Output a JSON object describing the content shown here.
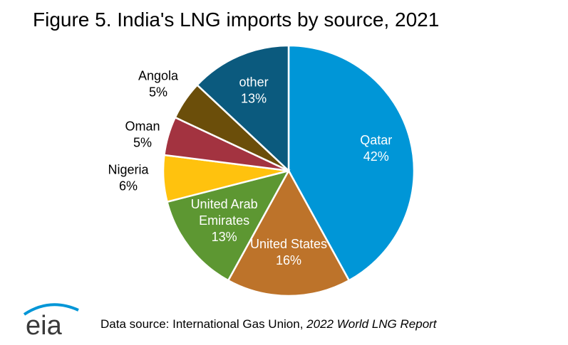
{
  "chart_data": {
    "type": "pie",
    "title": "Figure 5. India's LNG imports by source, 2021",
    "start_angle_deg": 0,
    "direction": "clockwise",
    "slices": [
      {
        "label": "Qatar",
        "value": 42,
        "value_label": "42%",
        "color": "#0096d7",
        "label_style": "inside"
      },
      {
        "label": "United States",
        "value": 16,
        "value_label": "16%",
        "color": "#bd732a",
        "label_style": "inside"
      },
      {
        "label": "United Arab Emirates",
        "value": 13,
        "value_label": "13%",
        "color": "#5d9732",
        "label_style": "inside"
      },
      {
        "label": "Nigeria",
        "value": 6,
        "value_label": "6%",
        "color": "#ffc20e",
        "label_style": "outside"
      },
      {
        "label": "Oman",
        "value": 5,
        "value_label": "5%",
        "color": "#a33340",
        "label_style": "outside"
      },
      {
        "label": "Angola",
        "value": 5,
        "value_label": "5%",
        "color": "#6b4e0a",
        "label_style": "outside"
      },
      {
        "label": "other",
        "value": 13,
        "value_label": "13%",
        "color": "#0b5a7e",
        "label_style": "inside"
      }
    ]
  },
  "footer": {
    "prefix": "Data source: International Gas Union, ",
    "source": "2022 World LNG Report"
  },
  "logo": {
    "text": "eia",
    "color": "#0096d7",
    "icon": "eia-logo-icon"
  }
}
